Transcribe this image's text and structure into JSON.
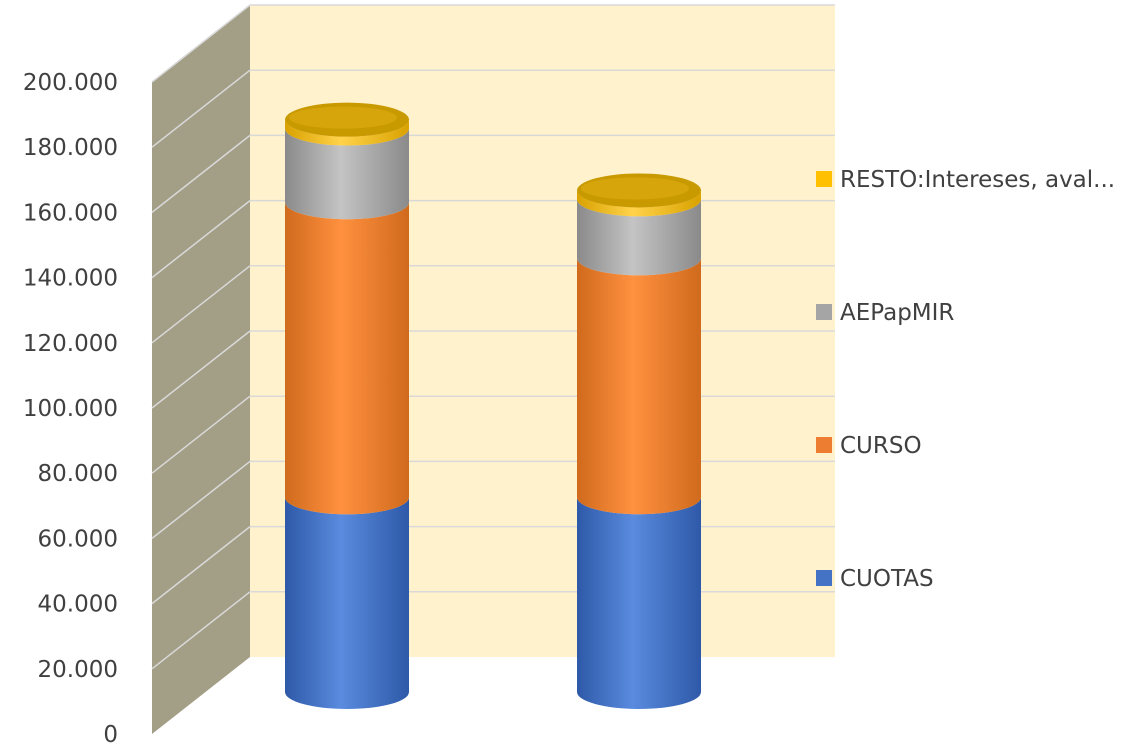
{
  "chart_data": {
    "type": "bar",
    "stacked": true,
    "three_d": true,
    "bar_shape": "cylinder",
    "categories": [
      "",
      ""
    ],
    "series": [
      {
        "name": "CUOTAS",
        "color": "#4472C4",
        "values": [
          66000,
          66000
        ]
      },
      {
        "name": "CURSO",
        "color": "#ED7D31",
        "values": [
          100000,
          81000
        ]
      },
      {
        "name": "AEPapMIR",
        "color": "#A5A5A5",
        "values": [
          25000,
          20000
        ]
      },
      {
        "name": "RESTO:Intereses, aval...",
        "color": "#FFC000",
        "values": [
          3000,
          3000
        ]
      }
    ],
    "y_ticks": [
      "0",
      "20.000",
      "40.000",
      "60.000",
      "80.000",
      "100.000",
      "120.000",
      "140.000",
      "160.000",
      "180.000",
      "200.000"
    ],
    "ylim": [
      0,
      200000
    ],
    "grid": true,
    "legend_position": "right",
    "colors": {
      "back_wall": "#FFF2CC",
      "side_wall": "#A39E86",
      "gridline": "#D9D9D9"
    }
  }
}
